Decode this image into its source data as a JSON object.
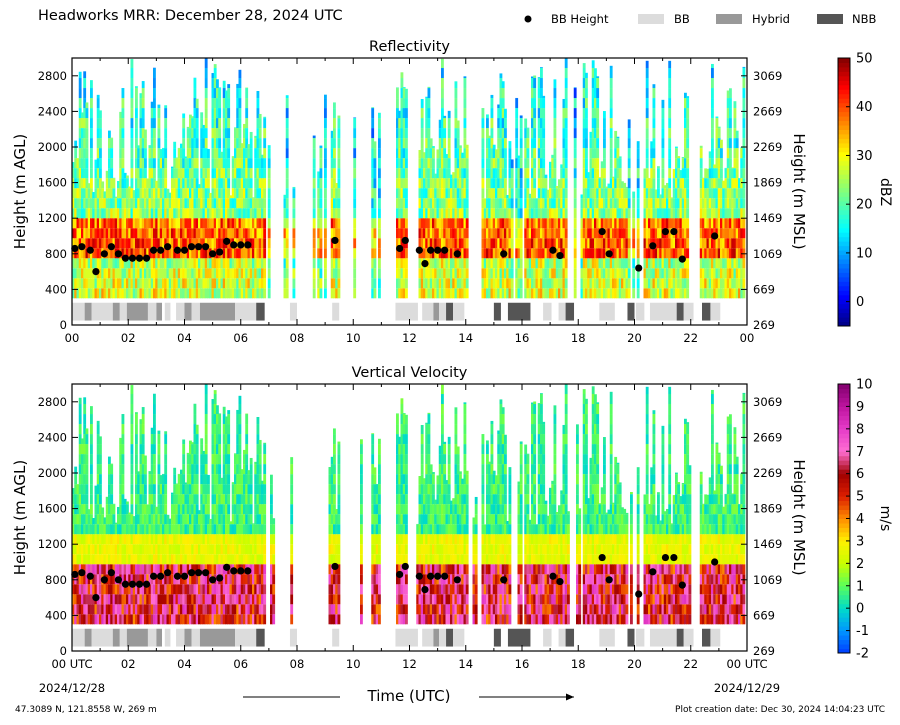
{
  "header": {
    "title": "Headworks MRR:  December 28, 2024 UTC",
    "legend": [
      {
        "label": "BB Height",
        "kind": "dot",
        "color": "#000000"
      },
      {
        "label": "BB",
        "kind": "box",
        "color": "#dcdcdc"
      },
      {
        "label": "Hybrid",
        "kind": "box",
        "color": "#999999"
      },
      {
        "label": "NBB",
        "kind": "box",
        "color": "#555555"
      }
    ]
  },
  "footer": {
    "location": "47.3089 N, 121.8558 W, 269 m",
    "creation": "Plot creation date: Dec 30, 2024 14:04:23 UTC"
  },
  "chart_data": [
    {
      "type": "heatmap",
      "title": "Reflectivity",
      "ylabel": "Height (m AGL)",
      "y2label": "Height (m MSL)",
      "xlim": [
        0,
        24
      ],
      "ylim": [
        0,
        3000
      ],
      "yticks": [
        "0",
        "400",
        "800",
        "1200",
        "1600",
        "2000",
        "2400",
        "2800"
      ],
      "y2ticks": [
        "269",
        "669",
        "1069",
        "1469",
        "1869",
        "2269",
        "2669",
        "3069"
      ],
      "xticks": [
        "00",
        "02",
        "04",
        "06",
        "08",
        "10",
        "12",
        "14",
        "16",
        "18",
        "20",
        "22",
        "00"
      ],
      "colorbar": {
        "label": "dBZ",
        "min": -5,
        "max": 50,
        "ticks": [
          "0",
          "10",
          "20",
          "30",
          "40",
          "50"
        ],
        "tick_values": [
          0,
          10,
          20,
          30,
          40,
          50
        ],
        "scheme": "jet"
      },
      "bb_heights": [
        [
          0.1,
          860
        ],
        [
          0.35,
          880
        ],
        [
          0.65,
          840
        ],
        [
          0.85,
          600
        ],
        [
          1.15,
          800
        ],
        [
          1.4,
          880
        ],
        [
          1.65,
          800
        ],
        [
          1.9,
          750
        ],
        [
          2.15,
          750
        ],
        [
          2.4,
          750
        ],
        [
          2.65,
          750
        ],
        [
          2.9,
          840
        ],
        [
          3.15,
          840
        ],
        [
          3.4,
          880
        ],
        [
          3.75,
          840
        ],
        [
          4.0,
          840
        ],
        [
          4.25,
          880
        ],
        [
          4.5,
          880
        ],
        [
          4.75,
          880
        ],
        [
          5.0,
          800
        ],
        [
          5.25,
          820
        ],
        [
          5.5,
          940
        ],
        [
          5.75,
          900
        ],
        [
          6.0,
          900
        ],
        [
          6.25,
          900
        ],
        [
          9.35,
          950
        ],
        [
          11.65,
          860
        ],
        [
          11.85,
          950
        ],
        [
          12.35,
          840
        ],
        [
          12.55,
          690
        ],
        [
          12.75,
          840
        ],
        [
          13.0,
          840
        ],
        [
          13.25,
          840
        ],
        [
          13.7,
          800
        ],
        [
          15.35,
          800
        ],
        [
          17.1,
          840
        ],
        [
          17.35,
          780
        ],
        [
          18.85,
          1050
        ],
        [
          19.1,
          800
        ],
        [
          20.15,
          640
        ],
        [
          20.65,
          890
        ],
        [
          21.1,
          1050
        ],
        [
          21.4,
          1050
        ],
        [
          21.7,
          740
        ],
        [
          22.85,
          1000
        ]
      ],
      "bb_type_segments": [
        [
          0.0,
          0.45,
          "BB"
        ],
        [
          0.45,
          0.7,
          "Hybrid"
        ],
        [
          0.7,
          1.45,
          "BB"
        ],
        [
          1.45,
          1.7,
          "Hybrid"
        ],
        [
          1.7,
          1.95,
          "BB"
        ],
        [
          1.95,
          2.7,
          "Hybrid"
        ],
        [
          2.7,
          3.0,
          "BB"
        ],
        [
          3.0,
          3.2,
          "Hybrid"
        ],
        [
          3.3,
          3.5,
          "BB"
        ],
        [
          3.7,
          4.0,
          "BB"
        ],
        [
          4.0,
          4.25,
          "Hybrid"
        ],
        [
          4.25,
          4.55,
          "BB"
        ],
        [
          4.55,
          5.8,
          "Hybrid"
        ],
        [
          5.8,
          6.55,
          "BB"
        ],
        [
          6.55,
          6.85,
          "NBB"
        ],
        [
          7.75,
          8.0,
          "BB"
        ],
        [
          9.25,
          9.5,
          "BB"
        ],
        [
          11.5,
          12.3,
          "BB"
        ],
        [
          12.45,
          12.85,
          "BB"
        ],
        [
          12.85,
          13.05,
          "Hybrid"
        ],
        [
          13.05,
          13.3,
          "BB"
        ],
        [
          13.3,
          13.55,
          "NBB"
        ],
        [
          13.55,
          13.95,
          "BB"
        ],
        [
          15.0,
          15.25,
          "NBB"
        ],
        [
          15.5,
          16.3,
          "NBB"
        ],
        [
          16.75,
          17.05,
          "BB"
        ],
        [
          17.3,
          17.55,
          "BB"
        ],
        [
          17.55,
          17.85,
          "NBB"
        ],
        [
          18.75,
          19.3,
          "BB"
        ],
        [
          19.75,
          20.0,
          "NBB"
        ],
        [
          20.05,
          20.35,
          "BB"
        ],
        [
          20.55,
          21.5,
          "BB"
        ],
        [
          21.5,
          21.75,
          "NBB"
        ],
        [
          21.75,
          22.1,
          "BB"
        ],
        [
          22.4,
          22.7,
          "NBB"
        ],
        [
          22.7,
          23.05,
          "BB"
        ]
      ]
    },
    {
      "type": "heatmap",
      "title": "Vertical Velocity",
      "ylabel": "Height (m AGL)",
      "y2label": "Height (m MSL)",
      "xlabel": "Time (UTC)",
      "xlim": [
        0,
        24
      ],
      "ylim": [
        0,
        3000
      ],
      "yticks": [
        "0",
        "400",
        "800",
        "1200",
        "1600",
        "2000",
        "2400",
        "2800"
      ],
      "y2ticks": [
        "269",
        "669",
        "1069",
        "1469",
        "1869",
        "2269",
        "2669",
        "3069"
      ],
      "xticks": [
        "00 UTC",
        "02",
        "04",
        "06",
        "08",
        "10",
        "12",
        "14",
        "16",
        "18",
        "20",
        "22",
        "00 UTC"
      ],
      "date_start": "2024/12/28",
      "date_end": "2024/12/29",
      "colorbar": {
        "label": "m/s",
        "min": -2,
        "max": 10,
        "ticks": [
          "-2",
          "-1",
          "0",
          "1",
          "2",
          "3",
          "4",
          "5",
          "6",
          "7",
          "8",
          "9",
          "10"
        ],
        "tick_values": [
          -2,
          -1,
          0,
          1,
          2,
          3,
          4,
          5,
          6,
          7,
          8,
          9,
          10
        ],
        "scheme": "velocity"
      },
      "bb_heights": [
        [
          0.1,
          860
        ],
        [
          0.35,
          880
        ],
        [
          0.65,
          840
        ],
        [
          0.85,
          600
        ],
        [
          1.15,
          800
        ],
        [
          1.4,
          880
        ],
        [
          1.65,
          800
        ],
        [
          1.9,
          750
        ],
        [
          2.15,
          750
        ],
        [
          2.4,
          750
        ],
        [
          2.65,
          750
        ],
        [
          2.9,
          840
        ],
        [
          3.15,
          840
        ],
        [
          3.4,
          880
        ],
        [
          3.75,
          840
        ],
        [
          4.0,
          840
        ],
        [
          4.25,
          880
        ],
        [
          4.5,
          880
        ],
        [
          4.75,
          880
        ],
        [
          5.0,
          800
        ],
        [
          5.25,
          820
        ],
        [
          5.5,
          940
        ],
        [
          5.75,
          900
        ],
        [
          6.0,
          900
        ],
        [
          6.25,
          900
        ],
        [
          9.35,
          950
        ],
        [
          11.65,
          860
        ],
        [
          11.85,
          950
        ],
        [
          12.35,
          840
        ],
        [
          12.55,
          690
        ],
        [
          12.75,
          840
        ],
        [
          13.0,
          840
        ],
        [
          13.25,
          840
        ],
        [
          13.7,
          800
        ],
        [
          15.35,
          800
        ],
        [
          17.1,
          840
        ],
        [
          17.35,
          780
        ],
        [
          18.85,
          1050
        ],
        [
          19.1,
          800
        ],
        [
          20.15,
          640
        ],
        [
          20.65,
          890
        ],
        [
          21.1,
          1050
        ],
        [
          21.4,
          1050
        ],
        [
          21.7,
          740
        ],
        [
          22.85,
          1000
        ]
      ],
      "bb_type_segments": [
        [
          0.0,
          0.45,
          "BB"
        ],
        [
          0.45,
          0.7,
          "Hybrid"
        ],
        [
          0.7,
          1.45,
          "BB"
        ],
        [
          1.45,
          1.7,
          "Hybrid"
        ],
        [
          1.7,
          1.95,
          "BB"
        ],
        [
          1.95,
          2.7,
          "Hybrid"
        ],
        [
          2.7,
          3.0,
          "BB"
        ],
        [
          3.0,
          3.2,
          "Hybrid"
        ],
        [
          3.3,
          3.5,
          "BB"
        ],
        [
          3.7,
          4.0,
          "BB"
        ],
        [
          4.0,
          4.25,
          "Hybrid"
        ],
        [
          4.25,
          4.55,
          "BB"
        ],
        [
          4.55,
          5.8,
          "Hybrid"
        ],
        [
          5.8,
          6.55,
          "BB"
        ],
        [
          6.55,
          6.85,
          "NBB"
        ],
        [
          7.75,
          8.0,
          "BB"
        ],
        [
          9.25,
          9.5,
          "BB"
        ],
        [
          11.5,
          12.3,
          "BB"
        ],
        [
          12.45,
          12.85,
          "BB"
        ],
        [
          12.85,
          13.05,
          "Hybrid"
        ],
        [
          13.05,
          13.3,
          "BB"
        ],
        [
          13.3,
          13.55,
          "NBB"
        ],
        [
          13.55,
          13.95,
          "BB"
        ],
        [
          15.0,
          15.25,
          "NBB"
        ],
        [
          15.5,
          16.3,
          "NBB"
        ],
        [
          16.75,
          17.05,
          "BB"
        ],
        [
          17.3,
          17.55,
          "BB"
        ],
        [
          17.55,
          17.85,
          "NBB"
        ],
        [
          18.75,
          19.3,
          "BB"
        ],
        [
          19.75,
          20.0,
          "NBB"
        ],
        [
          20.05,
          20.35,
          "BB"
        ],
        [
          20.55,
          21.5,
          "BB"
        ],
        [
          21.5,
          21.75,
          "NBB"
        ],
        [
          21.75,
          22.1,
          "BB"
        ],
        [
          22.4,
          22.7,
          "NBB"
        ],
        [
          22.7,
          23.05,
          "BB"
        ]
      ]
    }
  ]
}
